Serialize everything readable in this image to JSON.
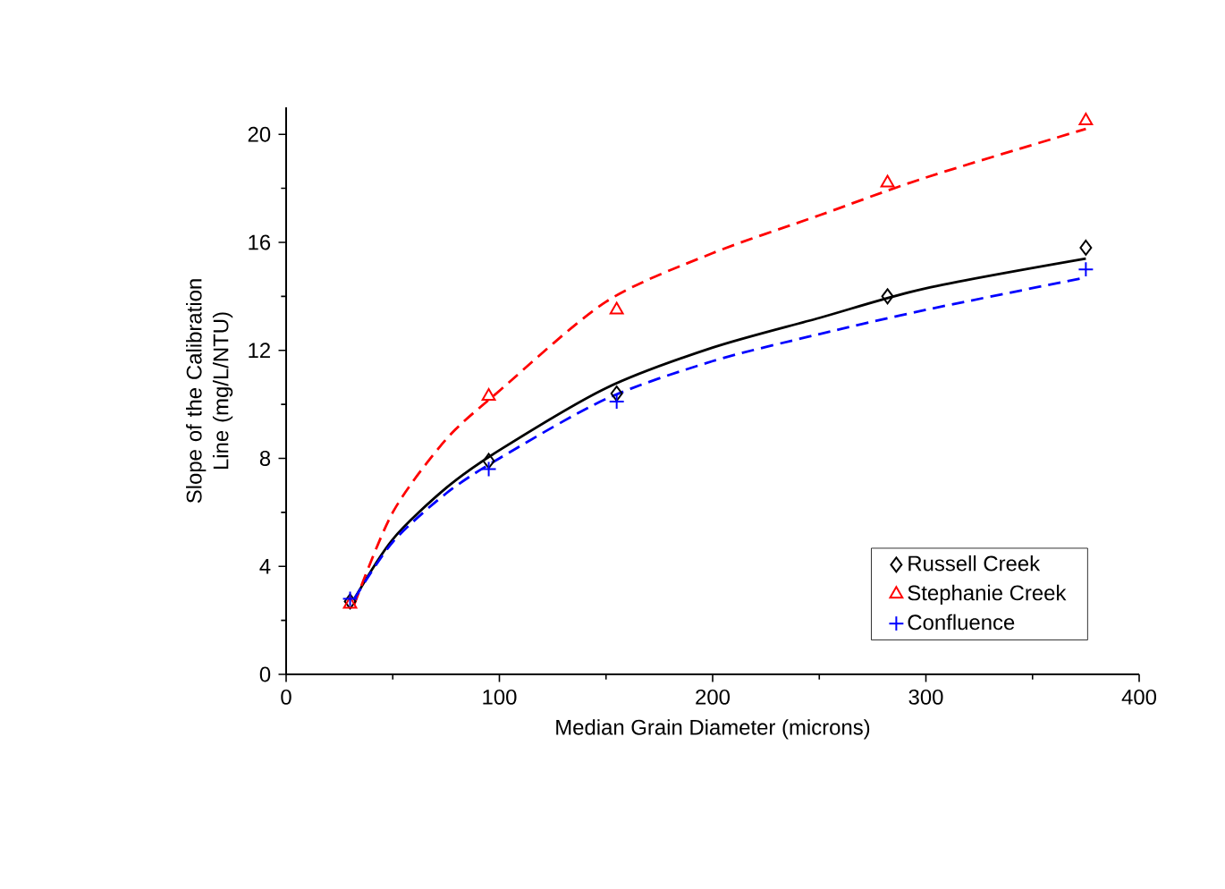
{
  "chart_data": {
    "type": "scatter",
    "xlabel": "Median Grain Diameter (microns)",
    "ylabel": "Slope of the Calibration Line (mg/L/NTU)",
    "xlim": [
      0,
      400
    ],
    "xticks": [
      0,
      100,
      200,
      300,
      400
    ],
    "ylim": [
      0,
      21
    ],
    "yticks": [
      0,
      4,
      8,
      12,
      16,
      20
    ],
    "legend": "bottom right",
    "series": [
      {
        "name": "Russell Creek",
        "marker": "diamond",
        "color": "#000000",
        "x": [
          30,
          95,
          155,
          282,
          375
        ],
        "values": [
          2.7,
          7.9,
          10.4,
          14.0,
          15.8
        ]
      },
      {
        "name": "Stephanie Creek",
        "marker": "triangle",
        "color": "#ff0000",
        "x": [
          30,
          95,
          155,
          282,
          375
        ],
        "values": [
          2.6,
          10.3,
          13.5,
          18.2,
          20.5
        ]
      },
      {
        "name": "Confluence",
        "marker": "cross",
        "color": "#0000ff",
        "x": [
          30,
          95,
          155,
          375
        ],
        "values": [
          2.8,
          7.6,
          10.1,
          15.0
        ]
      },
      {
        "type": "line",
        "line_style": "solid",
        "color": "#000000",
        "x": [
          32,
          50,
          75,
          100,
          150,
          200,
          250,
          300,
          375
        ],
        "values": [
          2.8,
          5.0,
          6.9,
          8.3,
          10.6,
          12.1,
          13.2,
          14.3,
          15.4
        ]
      },
      {
        "type": "line",
        "line_style": "dashed",
        "color": "#ff0000",
        "x": [
          32,
          50,
          75,
          100,
          150,
          200,
          250,
          300,
          375
        ],
        "values": [
          2.6,
          6.0,
          8.7,
          10.5,
          13.8,
          15.6,
          17.0,
          18.4,
          20.2
        ]
      },
      {
        "type": "line",
        "line_style": "dashed",
        "color": "#0000ff",
        "x": [
          32,
          50,
          75,
          100,
          150,
          200,
          250,
          300,
          375
        ],
        "values": [
          2.8,
          4.9,
          6.7,
          8.0,
          10.2,
          11.6,
          12.6,
          13.5,
          14.7
        ]
      }
    ]
  }
}
